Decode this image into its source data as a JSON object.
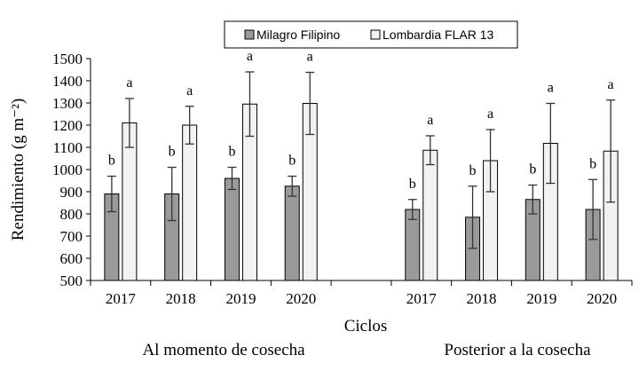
{
  "chart_data": {
    "type": "bar",
    "xlabel": "Ciclos",
    "ylabel": "Rendimiento (g m⁻²)",
    "ylim": [
      500,
      1500
    ],
    "yticks": [
      500,
      600,
      700,
      800,
      900,
      1000,
      1100,
      1200,
      1300,
      1400,
      1500
    ],
    "grid": false,
    "legend_position": "top-center",
    "colors": {
      "Milagro Filipino": "#9a9a9a",
      "Lombardia FLAR 13": "#f2f2f2",
      "stroke": "#000000"
    },
    "groups": [
      {
        "label": "Al momento de cosecha",
        "categories": [
          "2017",
          "2018",
          "2019",
          "2020"
        ]
      },
      {
        "label": "Posterior a la cosecha",
        "categories": [
          "2017",
          "2018",
          "2019",
          "2020"
        ]
      }
    ],
    "series": [
      {
        "name": "Milagro Filipino",
        "values": [
          [
            890,
            890,
            960,
            925
          ],
          [
            820,
            785,
            865,
            820
          ]
        ],
        "error": [
          [
            80,
            120,
            50,
            45
          ],
          [
            45,
            140,
            65,
            135
          ]
        ],
        "labels": [
          [
            "b",
            "b",
            "b",
            "b"
          ],
          [
            "b",
            "b",
            "b",
            "b"
          ]
        ]
      },
      {
        "name": "Lombardia FLAR 13",
        "values": [
          [
            1210,
            1200,
            1295,
            1298
          ],
          [
            1087,
            1040,
            1118,
            1083
          ]
        ],
        "error": [
          [
            110,
            85,
            145,
            140
          ],
          [
            65,
            140,
            180,
            230
          ]
        ],
        "labels": [
          [
            "a",
            "a",
            "a",
            "a"
          ],
          [
            "a",
            "a",
            "a",
            "a"
          ]
        ]
      }
    ]
  }
}
